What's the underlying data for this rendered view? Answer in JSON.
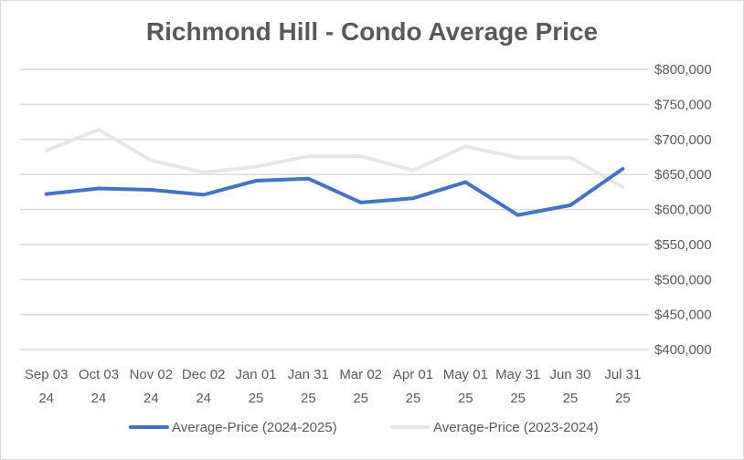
{
  "chart_data": {
    "type": "line",
    "title": "Richmond Hill - Condo Average Price",
    "xlabel": "",
    "ylabel": "",
    "categories": [
      [
        "Sep 03",
        "24"
      ],
      [
        "Oct 03",
        "24"
      ],
      [
        "Nov 02",
        "24"
      ],
      [
        "Dec 02",
        "24"
      ],
      [
        "Jan 01",
        "25"
      ],
      [
        "Jan 31",
        "25"
      ],
      [
        "Mar 02",
        "25"
      ],
      [
        "Apr 01",
        "25"
      ],
      [
        "May 01",
        "25"
      ],
      [
        "May 31",
        "25"
      ],
      [
        "Jun 30",
        "25"
      ],
      [
        "Jul 31",
        "25"
      ]
    ],
    "ylim": [
      400000,
      800000
    ],
    "yticks": [
      400000,
      450000,
      500000,
      550000,
      600000,
      650000,
      700000,
      750000,
      800000
    ],
    "ytick_labels": [
      "$400,000",
      "$450,000",
      "$500,000",
      "$550,000",
      "$600,000",
      "$650,000",
      "$700,000",
      "$750,000",
      "$800,000"
    ],
    "y_axis_side": "right",
    "grid": true,
    "legend_position": "bottom",
    "series": [
      {
        "name": "Average-Price (2024-2025)",
        "color": "#4472c4",
        "values": [
          622000,
          630000,
          628000,
          621000,
          641000,
          644000,
          610000,
          616000,
          639000,
          592000,
          606000,
          658000
        ]
      },
      {
        "name": "Average-Price (2023-2024)",
        "color": "#e7e6e6",
        "values": [
          684000,
          714000,
          670000,
          653000,
          661000,
          676000,
          676000,
          656000,
          690000,
          674000,
          674000,
          632000
        ]
      }
    ]
  }
}
